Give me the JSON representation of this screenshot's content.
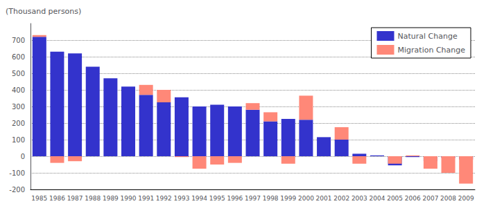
{
  "chart_data": {
    "type": "bar",
    "ylabel": "(Thousand persons)",
    "categories": [
      "1985",
      "1986",
      "1987",
      "1988",
      "1989",
      "1990",
      "1991",
      "1992",
      "1993",
      "1994",
      "1995",
      "1996",
      "1997",
      "1998",
      "1999",
      "2000",
      "2001",
      "2002",
      "2003",
      "2004",
      "2005",
      "2006",
      "2007",
      "2008",
      "2009"
    ],
    "series": [
      {
        "name": "Natural Change",
        "color": "#3333CC",
        "values": [
          720,
          630,
          620,
          540,
          470,
          420,
          370,
          325,
          355,
          300,
          310,
          300,
          280,
          210,
          225,
          220,
          115,
          100,
          15,
          5,
          -55,
          -5,
          -30,
          -10,
          -20
        ]
      },
      {
        "name": "Migration Change",
        "color": "#FF8878",
        "values": [
          10,
          -40,
          -30,
          0,
          0,
          0,
          60,
          75,
          -5,
          -75,
          -50,
          -40,
          40,
          55,
          -45,
          145,
          0,
          75,
          -45,
          0,
          -45,
          5,
          -75,
          -100,
          -165
        ]
      }
    ],
    "stacked": true,
    "ylim": [
      -200,
      800
    ],
    "yticks": [
      -200,
      -100,
      0,
      100,
      200,
      300,
      400,
      500,
      600,
      700
    ],
    "grid": true,
    "legend": "upper right"
  }
}
